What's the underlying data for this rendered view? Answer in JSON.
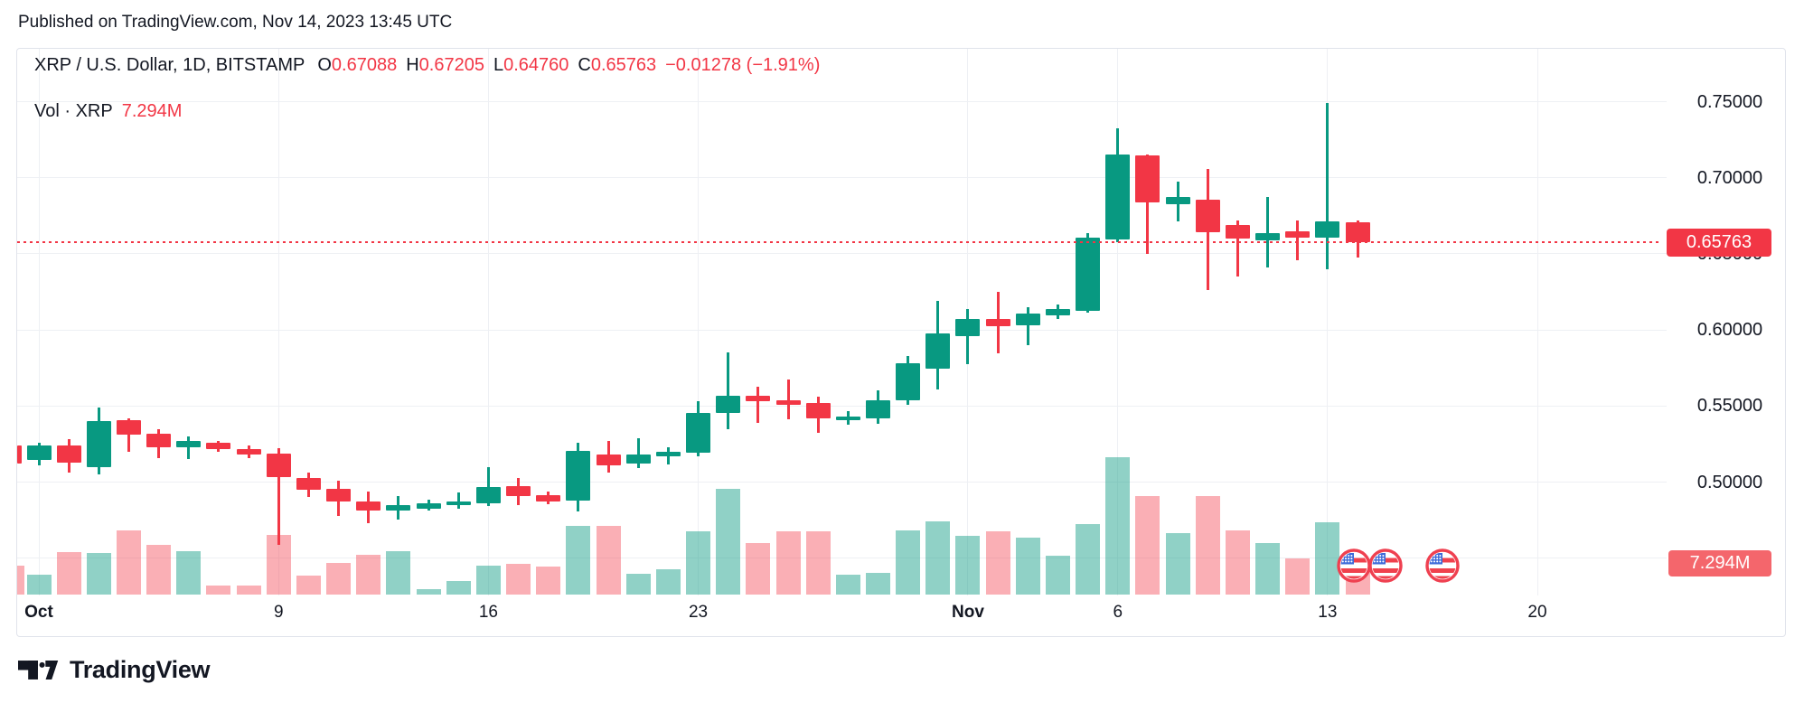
{
  "header": {
    "published": "Published on TradingView.com, Nov 14, 2023 13:45 UTC"
  },
  "legend": {
    "row1": [
      {
        "t": "XRP / U.S. Dollar, 1D, BITSTAMP",
        "c": "dark",
        "gap": "big"
      },
      {
        "t": "O",
        "c": "dark"
      },
      {
        "t": "0.67088",
        "c": "red",
        "gap": "small"
      },
      {
        "t": "H",
        "c": "dark"
      },
      {
        "t": "0.67205",
        "c": "red",
        "gap": "small"
      },
      {
        "t": "L",
        "c": "dark"
      },
      {
        "t": "0.64760",
        "c": "red",
        "gap": "small"
      },
      {
        "t": "C",
        "c": "dark"
      },
      {
        "t": "0.65763",
        "c": "red",
        "gap": "small"
      },
      {
        "t": "−0.01278 (−1.91%)",
        "c": "red"
      }
    ],
    "row2": [
      {
        "t": "Vol · XRP",
        "c": "dark",
        "gap": "small"
      },
      {
        "t": "7.294M",
        "c": "red"
      }
    ]
  },
  "chart_data": {
    "type": "candlestick_with_volume",
    "title": "XRP / U.S. Dollar, 1D, BITSTAMP",
    "symbol": "XRP/USD",
    "interval": "1D",
    "exchange": "BITSTAMP",
    "open": 0.67088,
    "high": 0.67205,
    "low": 0.6476,
    "close": 0.65763,
    "change": "−0.01278",
    "change_pct": "−1.91%",
    "current_volume": "7.294M",
    "ylim": [
      0.44,
      0.78
    ],
    "grid": true,
    "legend_position": "top-left",
    "y_axis_ticks": [
      {
        "label": "0.75000",
        "value": 0.75
      },
      {
        "label": "0.70000",
        "value": 0.7
      },
      {
        "label": "0.65000",
        "value": 0.65
      },
      {
        "label": "0.60000",
        "value": 0.6
      },
      {
        "label": "0.55000",
        "value": 0.55
      },
      {
        "label": "0.50000",
        "value": 0.5
      }
    ],
    "extra_gridlines": [
      0.45
    ],
    "x_axis_ticks": [
      {
        "label": "Oct",
        "day_index": 0,
        "bold": true
      },
      {
        "label": "9",
        "day_index": 8,
        "bold": false
      },
      {
        "label": "16",
        "day_index": 15,
        "bold": false
      },
      {
        "label": "23",
        "day_index": 22,
        "bold": false
      },
      {
        "label": "Nov",
        "day_index": 31,
        "bold": true
      },
      {
        "label": "6",
        "day_index": 36,
        "bold": false
      },
      {
        "label": "13",
        "day_index": 43,
        "bold": false
      },
      {
        "label": "20",
        "day_index": 50,
        "bold": false
      }
    ],
    "price_line": {
      "value": 0.65763,
      "label": "0.65763",
      "color": "#F23645"
    },
    "volume_badge": {
      "label": "7.294M"
    },
    "partial_first_candle": {
      "d": "Sep 30 (clipped)",
      "o": 0.524,
      "c": 0.512,
      "v": 6.9
    },
    "candles": [
      {
        "d": "Oct 1",
        "o": 0.5143,
        "h": 0.526,
        "l": 0.511,
        "c": 0.5238,
        "v": 4.7
      },
      {
        "d": "Oct 2",
        "o": 0.524,
        "h": 0.528,
        "l": 0.506,
        "c": 0.5125,
        "v": 10.1
      },
      {
        "d": "Oct 3",
        "o": 0.51,
        "h": 0.549,
        "l": 0.505,
        "c": 0.54,
        "v": 9.9
      },
      {
        "d": "Oct 4",
        "o": 0.5405,
        "h": 0.542,
        "l": 0.52,
        "c": 0.531,
        "v": 15.2
      },
      {
        "d": "Oct 5",
        "o": 0.532,
        "h": 0.535,
        "l": 0.516,
        "c": 0.5226,
        "v": 11.8
      },
      {
        "d": "Oct 6",
        "o": 0.5226,
        "h": 0.53,
        "l": 0.515,
        "c": 0.527,
        "v": 10.3
      },
      {
        "d": "Oct 7",
        "o": 0.5256,
        "h": 0.527,
        "l": 0.52,
        "c": 0.5214,
        "v": 2.1
      },
      {
        "d": "Oct 8",
        "o": 0.5214,
        "h": 0.524,
        "l": 0.516,
        "c": 0.518,
        "v": 2.1
      },
      {
        "d": "Oct 9",
        "o": 0.519,
        "h": 0.522,
        "l": 0.459,
        "c": 0.503,
        "v": 14.2
      },
      {
        "d": "Oct 10",
        "o": 0.5024,
        "h": 0.506,
        "l": 0.49,
        "c": 0.495,
        "v": 4.5
      },
      {
        "d": "Oct 11",
        "o": 0.4958,
        "h": 0.501,
        "l": 0.478,
        "c": 0.4875,
        "v": 7.5
      },
      {
        "d": "Oct 12",
        "o": 0.4875,
        "h": 0.4935,
        "l": 0.473,
        "c": 0.4815,
        "v": 9.4
      },
      {
        "d": "Oct 13",
        "o": 0.481,
        "h": 0.491,
        "l": 0.4756,
        "c": 0.485,
        "v": 10.3
      },
      {
        "d": "Oct 14",
        "o": 0.4827,
        "h": 0.4887,
        "l": 0.481,
        "c": 0.4863,
        "v": 1.3
      },
      {
        "d": "Oct 15",
        "o": 0.485,
        "h": 0.4929,
        "l": 0.4827,
        "c": 0.4875,
        "v": 3.2
      },
      {
        "d": "Oct 16",
        "o": 0.486,
        "h": 0.51,
        "l": 0.4845,
        "c": 0.497,
        "v": 6.9
      },
      {
        "d": "Oct 17",
        "o": 0.4976,
        "h": 0.5024,
        "l": 0.485,
        "c": 0.4905,
        "v": 7.3
      },
      {
        "d": "Oct 18",
        "o": 0.4911,
        "h": 0.494,
        "l": 0.4857,
        "c": 0.4875,
        "v": 6.7
      },
      {
        "d": "Oct 19",
        "o": 0.4881,
        "h": 0.5256,
        "l": 0.4804,
        "c": 0.5202,
        "v": 16.3
      },
      {
        "d": "Oct 20",
        "o": 0.518,
        "h": 0.527,
        "l": 0.506,
        "c": 0.511,
        "v": 16.3
      },
      {
        "d": "Oct 21",
        "o": 0.512,
        "h": 0.529,
        "l": 0.509,
        "c": 0.518,
        "v": 4.9
      },
      {
        "d": "Oct 22",
        "o": 0.5167,
        "h": 0.5226,
        "l": 0.5113,
        "c": 0.5196,
        "v": 6.0
      },
      {
        "d": "Oct 23",
        "o": 0.519,
        "h": 0.553,
        "l": 0.5167,
        "c": 0.5452,
        "v": 15.0
      },
      {
        "d": "Oct 24",
        "o": 0.5452,
        "h": 0.585,
        "l": 0.5345,
        "c": 0.557,
        "v": 25.1
      },
      {
        "d": "Oct 25",
        "o": 0.5565,
        "h": 0.5625,
        "l": 0.539,
        "c": 0.553,
        "v": 12.2
      },
      {
        "d": "Oct 26",
        "o": 0.554,
        "h": 0.5675,
        "l": 0.541,
        "c": 0.551,
        "v": 15.0
      },
      {
        "d": "Oct 27",
        "o": 0.5518,
        "h": 0.5559,
        "l": 0.5321,
        "c": 0.5417,
        "v": 15.0
      },
      {
        "d": "Oct 28",
        "o": 0.5405,
        "h": 0.5464,
        "l": 0.5375,
        "c": 0.5429,
        "v": 4.7
      },
      {
        "d": "Oct 29",
        "o": 0.5417,
        "h": 0.5601,
        "l": 0.538,
        "c": 0.5536,
        "v": 5.2
      },
      {
        "d": "Oct 30",
        "o": 0.5536,
        "h": 0.583,
        "l": 0.551,
        "c": 0.578,
        "v": 15.2
      },
      {
        "d": "Oct 31",
        "o": 0.5744,
        "h": 0.619,
        "l": 0.5607,
        "c": 0.5976,
        "v": 17.4
      },
      {
        "d": "Nov 1",
        "o": 0.5958,
        "h": 0.6136,
        "l": 0.5774,
        "c": 0.607,
        "v": 13.9
      },
      {
        "d": "Nov 2",
        "o": 0.607,
        "h": 0.625,
        "l": 0.5845,
        "c": 0.6024,
        "v": 15.0
      },
      {
        "d": "Nov 3",
        "o": 0.603,
        "h": 0.6148,
        "l": 0.59,
        "c": 0.611,
        "v": 13.5
      },
      {
        "d": "Nov 4",
        "o": 0.6095,
        "h": 0.6167,
        "l": 0.607,
        "c": 0.6137,
        "v": 9.2
      },
      {
        "d": "Nov 5",
        "o": 0.6125,
        "h": 0.6637,
        "l": 0.6113,
        "c": 0.6607,
        "v": 16.7
      },
      {
        "d": "Nov 6",
        "o": 0.6595,
        "h": 0.7327,
        "l": 0.6575,
        "c": 0.7155,
        "v": 32.6
      },
      {
        "d": "Nov 7",
        "o": 0.7149,
        "h": 0.7155,
        "l": 0.65,
        "c": 0.684,
        "v": 23.4
      },
      {
        "d": "Nov 8",
        "o": 0.6827,
        "h": 0.6976,
        "l": 0.6714,
        "c": 0.6875,
        "v": 14.6
      },
      {
        "d": "Nov 9",
        "o": 0.6857,
        "h": 0.706,
        "l": 0.6262,
        "c": 0.6643,
        "v": 23.4
      },
      {
        "d": "Nov 10",
        "o": 0.669,
        "h": 0.672,
        "l": 0.635,
        "c": 0.66,
        "v": 15.2
      },
      {
        "d": "Nov 11",
        "o": 0.659,
        "h": 0.6875,
        "l": 0.641,
        "c": 0.6637,
        "v": 12.2
      },
      {
        "d": "Nov 12",
        "o": 0.665,
        "h": 0.672,
        "l": 0.646,
        "c": 0.6607,
        "v": 8.6
      },
      {
        "d": "Nov 13",
        "o": 0.6607,
        "h": 0.7494,
        "l": 0.6399,
        "c": 0.6714,
        "v": 17.2
      },
      {
        "d": "Nov 14",
        "o": 0.67088,
        "h": 0.67205,
        "l": 0.6476,
        "c": 0.65763,
        "v": 7.294
      }
    ],
    "colors": {
      "up": "#089981",
      "down": "#F23645",
      "vol_up": "rgba(8,153,129,0.45)",
      "vol_down": "rgba(242,54,69,0.40)",
      "grid": "#EEF0F4",
      "text": "#131722",
      "accent_red": "#F23645",
      "vol_badge_bg": "#F4666C",
      "flag_ring": "#EF4050",
      "flag_blue": "#3E6BD9",
      "flag_red": "#F0414D"
    },
    "event_flags": {
      "icon": "us-flag",
      "centers_x": [
        1479,
        1514,
        1577
      ],
      "center_y": 572
    }
  },
  "footer": {
    "logo_text": "TradingView"
  }
}
